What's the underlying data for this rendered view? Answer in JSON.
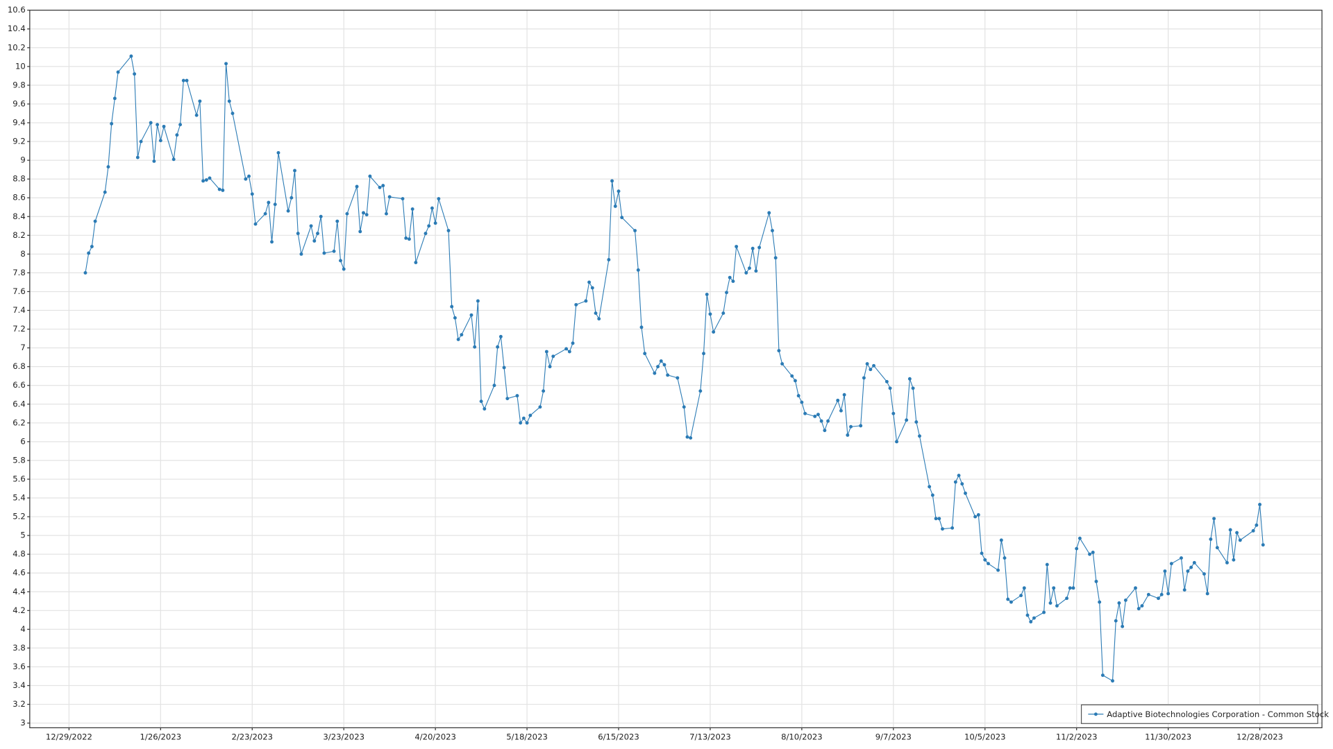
{
  "chart_data": {
    "type": "line",
    "grid": true,
    "legend": "bottom-right",
    "xlim": [
      "12/17/2022",
      "1/16/2024"
    ],
    "xticks": [
      "12/29/2022",
      "1/26/2023",
      "2/23/2023",
      "3/23/2023",
      "4/20/2023",
      "5/18/2023",
      "6/15/2023",
      "7/13/2023",
      "8/10/2023",
      "9/7/2023",
      "10/5/2023",
      "11/2/2023",
      "11/30/2023",
      "12/28/2023"
    ],
    "ylim": [
      2.95,
      10.6
    ],
    "yticks": [
      3,
      3.2,
      3.4,
      3.6,
      3.8,
      4,
      4.2,
      4.4,
      4.6,
      4.8,
      5,
      5.2,
      5.4,
      5.6,
      5.8,
      6,
      6.2,
      6.4,
      6.6,
      6.8,
      7,
      7.2,
      7.4,
      7.6,
      7.8,
      8,
      8.2,
      8.4,
      8.6,
      8.8,
      9,
      9.2,
      9.4,
      9.6,
      9.8,
      10,
      10.2,
      10.4,
      10.6
    ],
    "x": [
      "1/3/2023",
      "1/4/2023",
      "1/5/2023",
      "1/6/2023",
      "1/9/2023",
      "1/10/2023",
      "1/11/2023",
      "1/12/2023",
      "1/13/2023",
      "1/17/2023",
      "1/18/2023",
      "1/19/2023",
      "1/20/2023",
      "1/23/2023",
      "1/24/2023",
      "1/25/2023",
      "1/26/2023",
      "1/27/2023",
      "1/30/2023",
      "1/31/2023",
      "2/1/2023",
      "2/2/2023",
      "2/3/2023",
      "2/6/2023",
      "2/7/2023",
      "2/8/2023",
      "2/9/2023",
      "2/10/2023",
      "2/13/2023",
      "2/14/2023",
      "2/15/2023",
      "2/16/2023",
      "2/17/2023",
      "2/21/2023",
      "2/22/2023",
      "2/23/2023",
      "2/24/2023",
      "2/27/2023",
      "2/28/2023",
      "3/1/2023",
      "3/2/2023",
      "3/3/2023",
      "3/6/2023",
      "3/7/2023",
      "3/8/2023",
      "3/9/2023",
      "3/10/2023",
      "3/13/2023",
      "3/14/2023",
      "3/15/2023",
      "3/16/2023",
      "3/17/2023",
      "3/20/2023",
      "3/21/2023",
      "3/22/2023",
      "3/23/2023",
      "3/24/2023",
      "3/27/2023",
      "3/28/2023",
      "3/29/2023",
      "3/30/2023",
      "3/31/2023",
      "4/3/2023",
      "4/4/2023",
      "4/5/2023",
      "4/6/2023",
      "4/10/2023",
      "4/11/2023",
      "4/12/2023",
      "4/13/2023",
      "4/14/2023",
      "4/17/2023",
      "4/18/2023",
      "4/19/2023",
      "4/20/2023",
      "4/21/2023",
      "4/24/2023",
      "4/25/2023",
      "4/26/2023",
      "4/27/2023",
      "4/28/2023",
      "5/1/2023",
      "5/2/2023",
      "5/3/2023",
      "5/4/2023",
      "5/5/2023",
      "5/8/2023",
      "5/9/2023",
      "5/10/2023",
      "5/11/2023",
      "5/12/2023",
      "5/15/2023",
      "5/16/2023",
      "5/17/2023",
      "5/18/2023",
      "5/19/2023",
      "5/22/2023",
      "5/23/2023",
      "5/24/2023",
      "5/25/2023",
      "5/26/2023",
      "5/30/2023",
      "5/31/2023",
      "6/1/2023",
      "6/2/2023",
      "6/5/2023",
      "6/6/2023",
      "6/7/2023",
      "6/8/2023",
      "6/9/2023",
      "6/12/2023",
      "6/13/2023",
      "6/14/2023",
      "6/15/2023",
      "6/16/2023",
      "6/20/2023",
      "6/21/2023",
      "6/22/2023",
      "6/23/2023",
      "6/26/2023",
      "6/27/2023",
      "6/28/2023",
      "6/29/2023",
      "6/30/2023",
      "7/3/2023",
      "7/5/2023",
      "7/6/2023",
      "7/7/2023",
      "7/10/2023",
      "7/11/2023",
      "7/12/2023",
      "7/13/2023",
      "7/14/2023",
      "7/17/2023",
      "7/18/2023",
      "7/19/2023",
      "7/20/2023",
      "7/21/2023",
      "7/24/2023",
      "7/25/2023",
      "7/26/2023",
      "7/27/2023",
      "7/28/2023",
      "7/31/2023",
      "8/1/2023",
      "8/2/2023",
      "8/3/2023",
      "8/4/2023",
      "8/7/2023",
      "8/8/2023",
      "8/9/2023",
      "8/10/2023",
      "8/11/2023",
      "8/14/2023",
      "8/15/2023",
      "8/16/2023",
      "8/17/2023",
      "8/18/2023",
      "8/21/2023",
      "8/22/2023",
      "8/23/2023",
      "8/24/2023",
      "8/25/2023",
      "8/28/2023",
      "8/29/2023",
      "8/30/2023",
      "8/31/2023",
      "9/1/2023",
      "9/5/2023",
      "9/6/2023",
      "9/7/2023",
      "9/8/2023",
      "9/11/2023",
      "9/12/2023",
      "9/13/2023",
      "9/14/2023",
      "9/15/2023",
      "9/18/2023",
      "9/19/2023",
      "9/20/2023",
      "9/21/2023",
      "9/22/2023",
      "9/25/2023",
      "9/26/2023",
      "9/27/2023",
      "9/28/2023",
      "9/29/2023",
      "10/2/2023",
      "10/3/2023",
      "10/4/2023",
      "10/5/2023",
      "10/6/2023",
      "10/9/2023",
      "10/10/2023",
      "10/11/2023",
      "10/12/2023",
      "10/13/2023",
      "10/16/2023",
      "10/17/2023",
      "10/18/2023",
      "10/19/2023",
      "10/20/2023",
      "10/23/2023",
      "10/24/2023",
      "10/25/2023",
      "10/26/2023",
      "10/27/2023",
      "10/30/2023",
      "10/31/2023",
      "11/1/2023",
      "11/2/2023",
      "11/3/2023",
      "11/6/2023",
      "11/7/2023",
      "11/8/2023",
      "11/9/2023",
      "11/10/2023",
      "11/13/2023",
      "11/14/2023",
      "11/15/2023",
      "11/16/2023",
      "11/17/2023",
      "11/20/2023",
      "11/21/2023",
      "11/22/2023",
      "11/24/2023",
      "11/27/2023",
      "11/28/2023",
      "11/29/2023",
      "11/30/2023",
      "12/1/2023",
      "12/4/2023",
      "12/5/2023",
      "12/6/2023",
      "12/7/2023",
      "12/8/2023",
      "12/11/2023",
      "12/12/2023",
      "12/13/2023",
      "12/14/2023",
      "12/15/2023",
      "12/18/2023",
      "12/19/2023",
      "12/20/2023",
      "12/21/2023",
      "12/22/2023",
      "12/26/2023",
      "12/27/2023",
      "12/28/2023",
      "12/29/2023"
    ],
    "series": [
      {
        "name": "Adaptive Biotechnologies Corporation - Common Stock",
        "color": "#2b7bb5",
        "values": [
          7.8,
          8.01,
          8.08,
          8.35,
          8.66,
          8.93,
          9.39,
          9.66,
          9.94,
          10.11,
          9.92,
          9.03,
          9.2,
          9.4,
          8.99,
          9.38,
          9.21,
          9.36,
          9.01,
          9.27,
          9.38,
          9.85,
          9.85,
          9.48,
          9.63,
          8.78,
          8.79,
          8.81,
          8.69,
          8.68,
          10.03,
          9.63,
          9.5,
          8.8,
          8.83,
          8.64,
          8.32,
          8.43,
          8.55,
          8.13,
          8.53,
          9.08,
          8.46,
          8.6,
          8.89,
          8.22,
          8.0,
          8.3,
          8.14,
          8.22,
          8.4,
          8.01,
          8.03,
          8.35,
          7.93,
          7.84,
          8.43,
          8.72,
          8.24,
          8.44,
          8.42,
          8.83,
          8.71,
          8.73,
          8.43,
          8.61,
          8.59,
          8.17,
          8.16,
          8.48,
          7.91,
          8.22,
          8.3,
          8.49,
          8.33,
          8.59,
          8.25,
          7.44,
          7.32,
          7.09,
          7.14,
          7.35,
          7.01,
          7.5,
          6.43,
          6.35,
          6.6,
          7.01,
          7.12,
          6.79,
          6.46,
          6.49,
          6.2,
          6.25,
          6.2,
          6.28,
          6.37,
          6.54,
          6.96,
          6.8,
          6.91,
          6.99,
          6.96,
          7.05,
          7.46,
          7.5,
          7.7,
          7.64,
          7.37,
          7.31,
          7.94,
          8.78,
          8.51,
          8.67,
          8.39,
          8.25,
          7.83,
          7.22,
          6.94,
          6.73,
          6.8,
          6.86,
          6.82,
          6.71,
          6.68,
          6.37,
          6.05,
          6.04,
          6.54,
          6.94,
          7.57,
          7.36,
          7.17,
          7.37,
          7.59,
          7.75,
          7.71,
          8.08,
          7.8,
          7.85,
          8.06,
          7.82,
          8.07,
          8.44,
          8.25,
          7.96,
          6.97,
          6.83,
          6.7,
          6.65,
          6.49,
          6.42,
          6.3,
          6.27,
          6.29,
          6.22,
          6.12,
          6.22,
          6.44,
          6.33,
          6.5,
          6.07,
          6.16,
          6.17,
          6.68,
          6.83,
          6.77,
          6.81,
          6.64,
          6.57,
          6.3,
          6.0,
          6.23,
          6.67,
          6.57,
          6.21,
          6.06,
          5.52,
          5.43,
          5.18,
          5.18,
          5.07,
          5.08,
          5.57,
          5.64,
          5.55,
          5.45,
          5.2,
          5.22,
          4.81,
          4.74,
          4.7,
          4.63,
          4.95,
          4.76,
          4.32,
          4.29,
          4.36,
          4.44,
          4.15,
          4.08,
          4.12,
          4.18,
          4.69,
          4.28,
          4.44,
          4.25,
          4.33,
          4.44,
          4.44,
          4.86,
          4.97,
          4.8,
          4.82,
          4.51,
          4.29,
          3.51,
          3.45,
          4.09,
          4.28,
          4.03,
          4.31,
          4.44,
          4.22,
          4.25,
          4.37,
          4.33,
          4.37,
          4.62,
          4.38,
          4.7,
          4.76,
          4.42,
          4.62,
          4.66,
          4.71,
          4.59,
          4.38,
          4.96,
          5.18,
          4.87,
          4.71,
          5.06,
          4.74,
          5.03,
          4.95,
          5.05,
          5.11,
          5.33,
          4.9
        ]
      }
    ]
  }
}
